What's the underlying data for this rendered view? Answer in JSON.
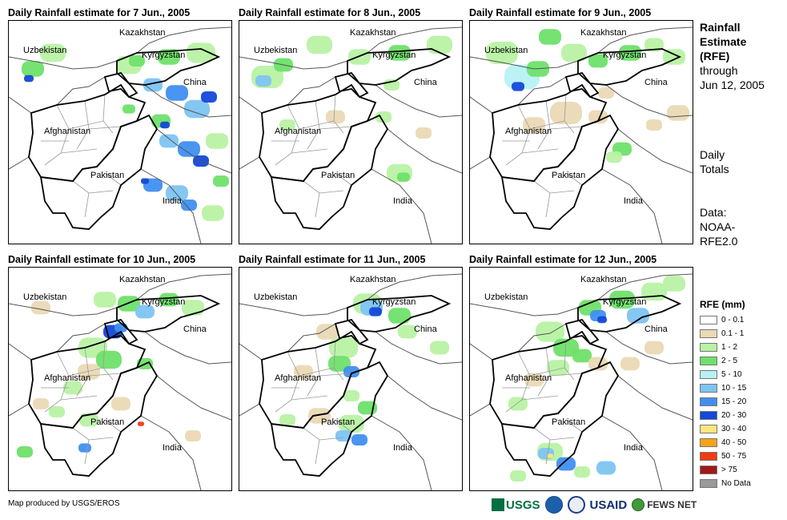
{
  "panels": [
    {
      "title": "Daily Rainfall estimate for 7 Jun., 2005"
    },
    {
      "title": "Daily Rainfall estimate for 8 Jun., 2005"
    },
    {
      "title": "Daily Rainfall estimate for 9 Jun., 2005"
    },
    {
      "title": "Daily Rainfall estimate for 10 Jun., 2005"
    },
    {
      "title": "Daily Rainfall estimate for 11 Jun., 2005"
    },
    {
      "title": "Daily Rainfall estimate for 12 Jun., 2005"
    }
  ],
  "map_labels": {
    "kazakhstan": "Kazakhstan",
    "uzbekistan": "Uzbekistan",
    "kyrgyzstan": "Kyrgyzstan",
    "china": "China",
    "afghanistan": "Afghanistan",
    "pakistan": "Pakistan",
    "india": "India"
  },
  "side": {
    "heading_1": "Rainfall",
    "heading_2": "Estimate",
    "heading_3": "(RFE)",
    "through": "through",
    "date": "Jun 12, 2005",
    "daily_1": "Daily",
    "daily_2": "Totals",
    "data_1": "Data:",
    "data_2": "NOAA-",
    "data_3": "RFE2.0"
  },
  "legend": {
    "title": "RFE (mm)",
    "items": [
      {
        "label": "0 - 0.1",
        "color": "#ffffff"
      },
      {
        "label": "0.1 - 1",
        "color": "#ead9b5"
      },
      {
        "label": "1 - 2",
        "color": "#b8f2a4"
      },
      {
        "label": "2 - 5",
        "color": "#6fe06a"
      },
      {
        "label": "5 - 10",
        "color": "#b7f1f5"
      },
      {
        "label": "10 - 15",
        "color": "#7ec4f2"
      },
      {
        "label": "15 - 20",
        "color": "#3f8ff0"
      },
      {
        "label": "20 - 30",
        "color": "#1448d8"
      },
      {
        "label": "30 - 40",
        "color": "#fbe680"
      },
      {
        "label": "40 - 50",
        "color": "#f7a318"
      },
      {
        "label": "50 - 75",
        "color": "#f03c14"
      },
      {
        "label": "> 75",
        "color": "#a01818"
      },
      {
        "label": "No Data",
        "color": "#9a9a9a"
      }
    ]
  },
  "footer": {
    "credit": "Map produced by USGS/EROS"
  },
  "logos": {
    "usgs": "USGS",
    "usaid": "USAID",
    "fews": "FEWS NET"
  }
}
